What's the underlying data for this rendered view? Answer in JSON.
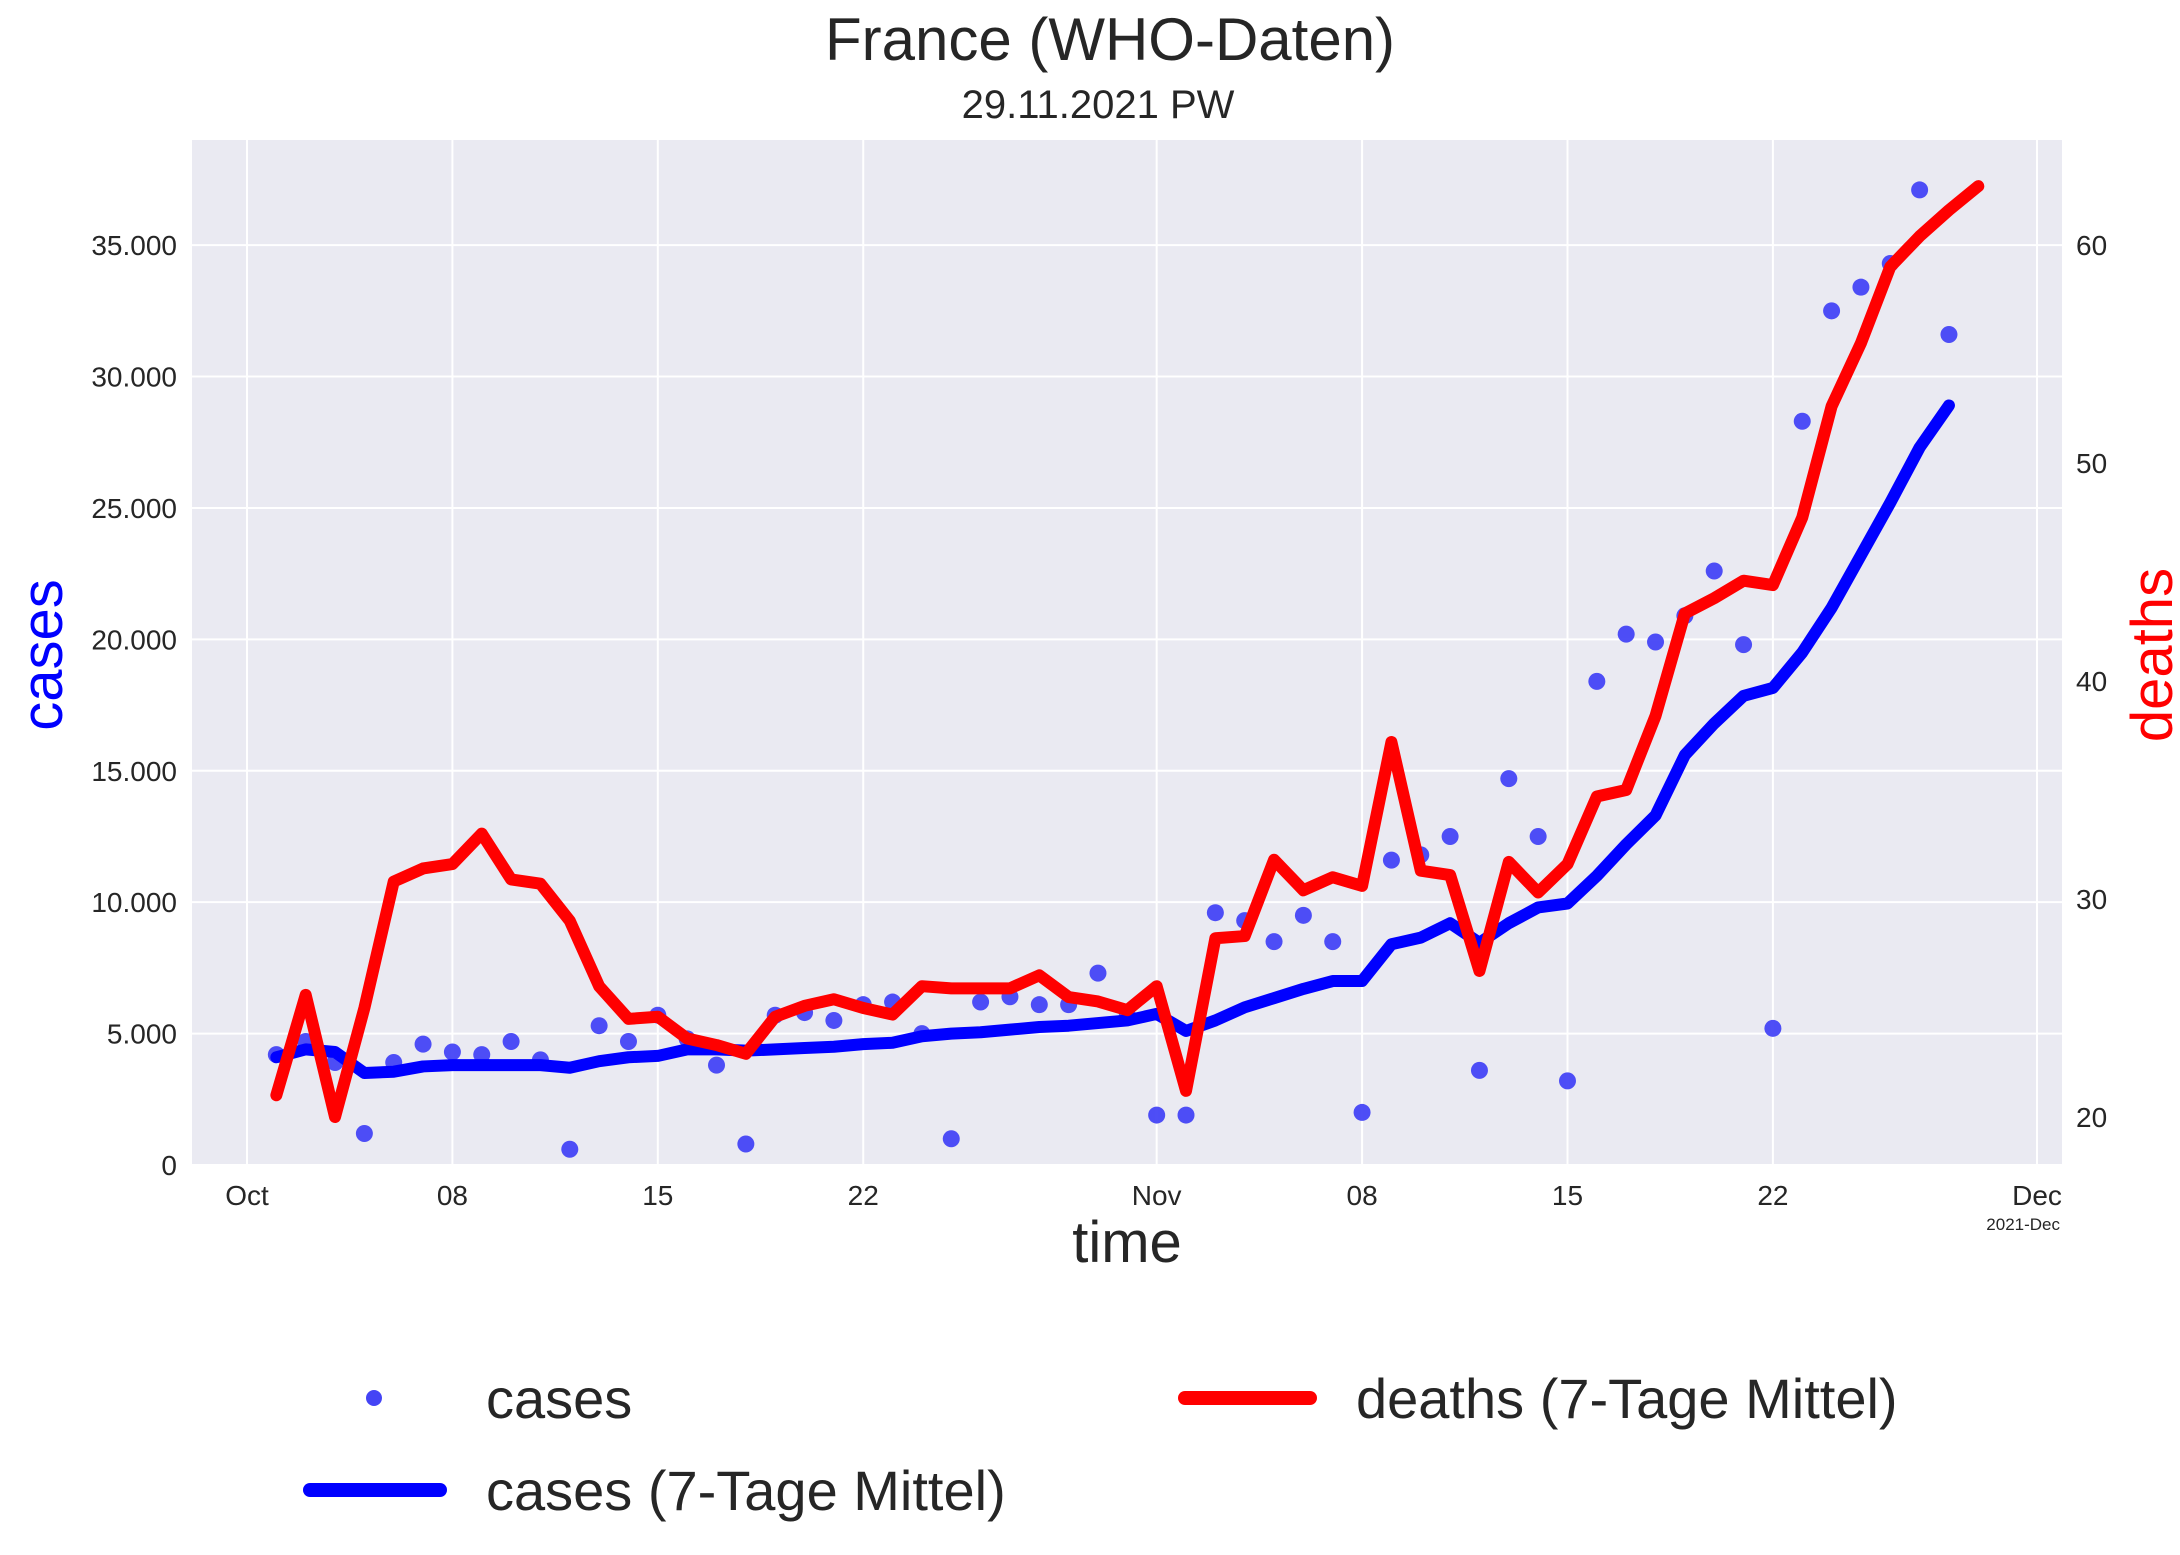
{
  "chart_data": {
    "type": "line",
    "title": "France  (WHO-Daten)",
    "subtitle": "29.11.2021 PW",
    "xlabel": "time",
    "ylabel_left": "cases",
    "ylabel_right": "deaths",
    "x_offset_label": "2021-Dec",
    "x_start": "2021-10-01",
    "x_end": "2021-12-01",
    "ylim_left": [
      0,
      39000
    ],
    "ylim_right": [
      18,
      64
    ],
    "x_ticks": [
      {
        "date": "2021-10-01",
        "label": "Oct"
      },
      {
        "date": "2021-10-08",
        "label": "08"
      },
      {
        "date": "2021-10-15",
        "label": "15"
      },
      {
        "date": "2021-10-22",
        "label": "22"
      },
      {
        "date": "2021-11-01",
        "label": "Nov"
      },
      {
        "date": "2021-11-08",
        "label": "08"
      },
      {
        "date": "2021-11-15",
        "label": "15"
      },
      {
        "date": "2021-11-22",
        "label": "22"
      },
      {
        "date": "2021-12-01",
        "label": "Dec"
      }
    ],
    "y_ticks_left": [
      {
        "value": 0,
        "label": "0"
      },
      {
        "value": 5000,
        "label": "5.000"
      },
      {
        "value": 10000,
        "label": "10.000"
      },
      {
        "value": 15000,
        "label": "15.000"
      },
      {
        "value": 20000,
        "label": "20.000"
      },
      {
        "value": 25000,
        "label": "25.000"
      },
      {
        "value": 30000,
        "label": "30.000"
      },
      {
        "value": 35000,
        "label": "35.000"
      }
    ],
    "y_ticks_right": [
      {
        "value": 20,
        "label": "20"
      },
      {
        "value": 30,
        "label": "30"
      },
      {
        "value": 40,
        "label": "40"
      },
      {
        "value": 50,
        "label": "50"
      },
      {
        "value": 60,
        "label": "60"
      }
    ],
    "grid": true,
    "legend_position": "bottom",
    "colors": {
      "plot_background": "#eaeaf2",
      "grid": "#ffffff",
      "cases_points": "#4444f5",
      "cases_line": "#0000ff",
      "deaths_line": "#ff0000",
      "text": "#262626",
      "cases_label": "#0000ff",
      "deaths_label": "#ff0000"
    },
    "x": [
      "2021-10-02",
      "2021-10-03",
      "2021-10-04",
      "2021-10-05",
      "2021-10-06",
      "2021-10-07",
      "2021-10-08",
      "2021-10-09",
      "2021-10-10",
      "2021-10-11",
      "2021-10-12",
      "2021-10-13",
      "2021-10-14",
      "2021-10-15",
      "2021-10-16",
      "2021-10-17",
      "2021-10-18",
      "2021-10-19",
      "2021-10-20",
      "2021-10-21",
      "2021-10-22",
      "2021-10-23",
      "2021-10-24",
      "2021-10-25",
      "2021-10-26",
      "2021-10-27",
      "2021-10-28",
      "2021-10-29",
      "2021-10-30",
      "2021-10-31",
      "2021-11-01",
      "2021-11-02",
      "2021-11-03",
      "2021-11-04",
      "2021-11-05",
      "2021-11-06",
      "2021-11-07",
      "2021-11-08",
      "2021-11-09",
      "2021-11-10",
      "2021-11-11",
      "2021-11-12",
      "2021-11-13",
      "2021-11-14",
      "2021-11-15",
      "2021-11-16",
      "2021-11-17",
      "2021-11-18",
      "2021-11-19",
      "2021-11-20",
      "2021-11-21",
      "2021-11-22",
      "2021-11-23",
      "2021-11-24",
      "2021-11-25",
      "2021-11-26",
      "2021-11-27",
      "2021-11-28",
      "2021-11-29"
    ],
    "series": [
      {
        "name": "cases",
        "kind": "scatter",
        "values": [
          4200,
          4700,
          3900,
          1200,
          3900,
          4600,
          4300,
          4200,
          4700,
          4000,
          600,
          5300,
          4700,
          5700,
          4800,
          3800,
          800,
          5700,
          5800,
          5500,
          6100,
          6200,
          5000,
          1000,
          6200,
          6400,
          6100,
          6100,
          7300,
          5700,
          1900,
          1900,
          9600,
          9300,
          8500,
          9500,
          8500,
          2000,
          11600,
          11800,
          12500,
          3600,
          14700,
          12500,
          3200,
          18400,
          20200,
          19900,
          20900,
          22600,
          19800,
          5200,
          28300,
          32500,
          33400,
          34300,
          37100,
          31600,
          null
        ]
      },
      {
        "name": "cases (7-Tage Mittel)",
        "kind": "line",
        "values": [
          4100,
          4400,
          4300,
          3500,
          3550,
          3750,
          3800,
          3800,
          3800,
          3800,
          3700,
          3950,
          4100,
          4150,
          4400,
          4400,
          4350,
          4400,
          4450,
          4500,
          4600,
          4650,
          4900,
          5000,
          5050,
          5150,
          5250,
          5300,
          5400,
          5500,
          5750,
          5100,
          5500,
          6000,
          6350,
          6700,
          7000,
          7000,
          8400,
          8650,
          9200,
          8450,
          9200,
          9800,
          9950,
          11000,
          12200,
          13300,
          15600,
          16800,
          17850,
          18150,
          19500,
          21200,
          23200,
          25200,
          27300,
          28900,
          null
        ],
        "comment_shift": "series aligned starting 2021-10-02; last point on 2021-11-29 handled by script"
      },
      {
        "name": "deaths (7-Tage Mittel)",
        "kind": "line",
        "axis": "right",
        "values": [
          21,
          25.6,
          20,
          25,
          30.8,
          31.4,
          31.6,
          33,
          30.9,
          30.7,
          29,
          26,
          24.5,
          24.6,
          23.6,
          23.3,
          22.9,
          24.6,
          25.1,
          25.4,
          25,
          24.7,
          26,
          25.9,
          25.9,
          25.9,
          26.5,
          25.5,
          25.3,
          24.9,
          26,
          21.2,
          28.2,
          28.3,
          31.8,
          30.4,
          31,
          30.6,
          37.2,
          31.3,
          31.1,
          26.7,
          31.7,
          30.3,
          31.6,
          34.7,
          35,
          38.4,
          43.1,
          43.8,
          44.6,
          44.4,
          47.5,
          52.6,
          55.5,
          59,
          60.4,
          61.6,
          62.7
        ]
      }
    ],
    "legend": [
      {
        "label": "cases",
        "marker": "dot"
      },
      {
        "label": "cases (7-Tage Mittel)",
        "marker": "line-blue"
      },
      {
        "label": "deaths (7-Tage Mittel)",
        "marker": "line-red"
      }
    ]
  }
}
